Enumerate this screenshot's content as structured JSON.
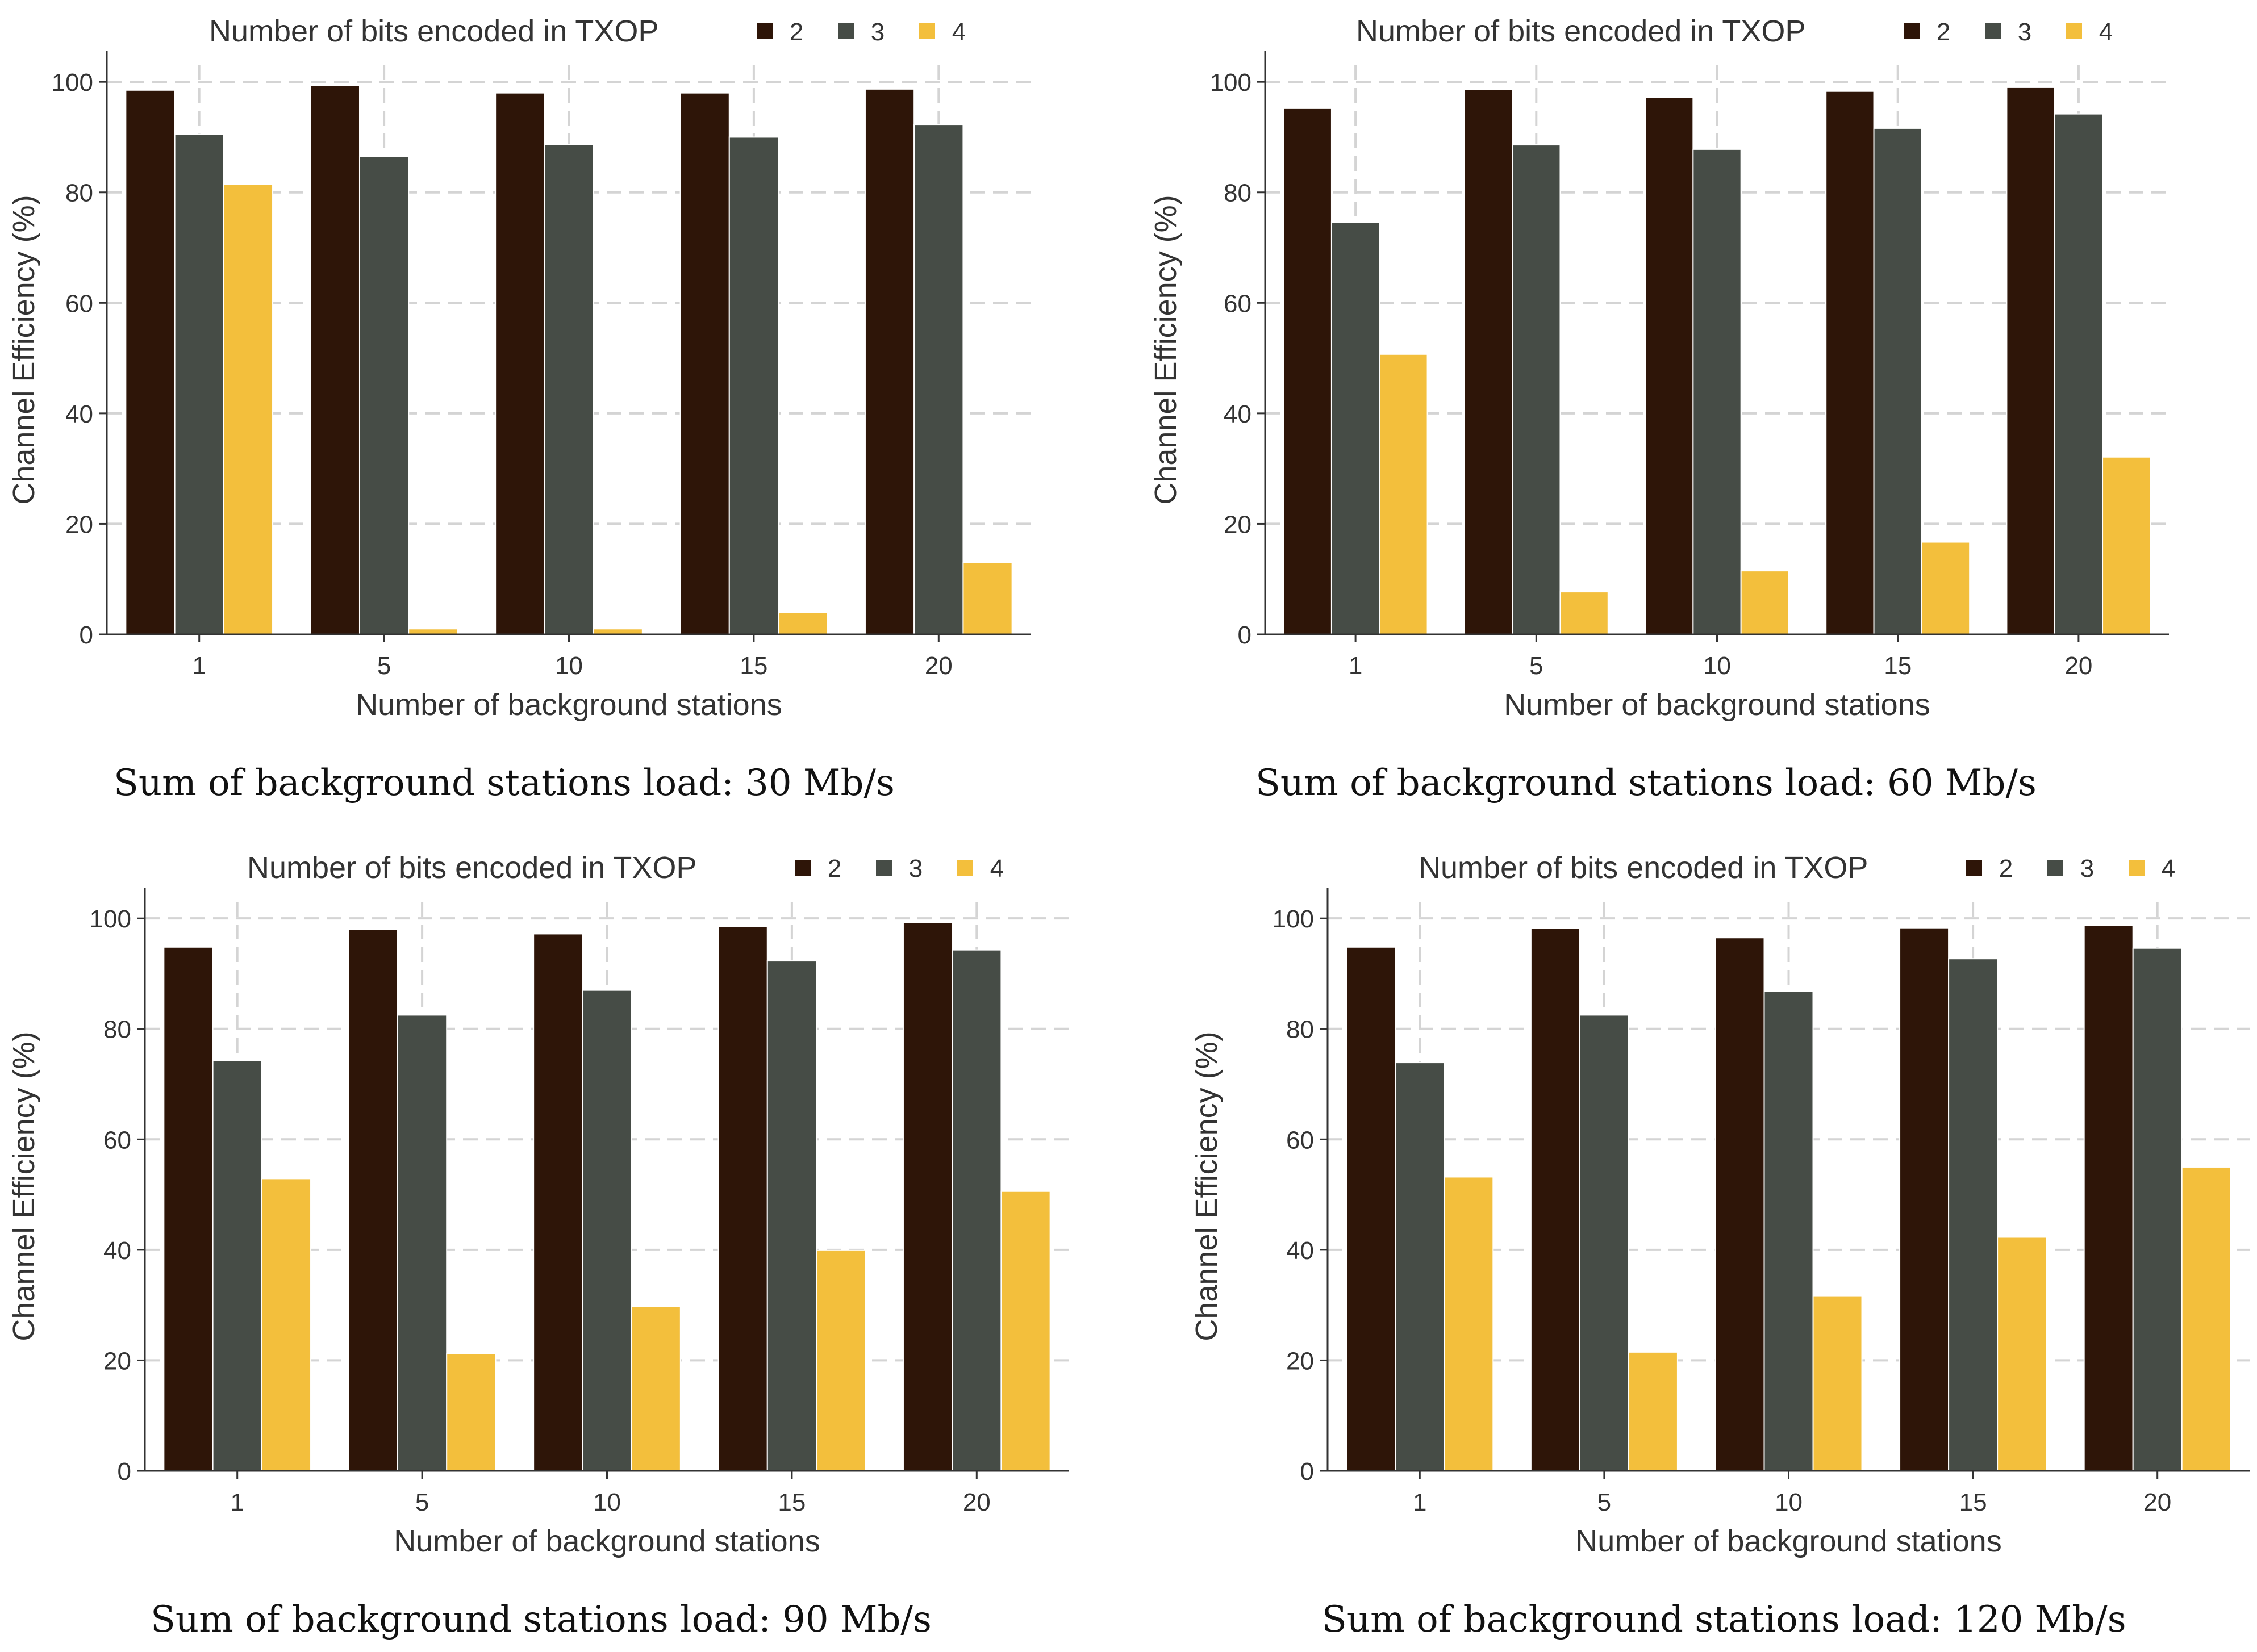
{
  "colors": {
    "s2": "#2e1508",
    "s3": "#464c46",
    "s4": "#f3bf3c",
    "grid": "#d4d4d4",
    "axis": "#333333",
    "text": "#333333"
  },
  "chart_data": [
    {
      "type": "bar",
      "legend_title": "Number of bits encoded in TXOP",
      "categories": [
        "1",
        "5",
        "10",
        "15",
        "20"
      ],
      "series": [
        {
          "name": "2",
          "values": [
            98.5,
            99.3,
            98.0,
            98.0,
            98.7
          ]
        },
        {
          "name": "3",
          "values": [
            90.5,
            86.5,
            88.7,
            90.0,
            92.3
          ]
        },
        {
          "name": "4",
          "values": [
            81.5,
            1.0,
            1.0,
            4.0,
            13.0
          ]
        }
      ],
      "yticks": [
        "0",
        "20",
        "40",
        "60",
        "80",
        "100"
      ],
      "xlabel": "Number of background stations",
      "ylabel": "Channel Efficiency (%)",
      "ylim": [
        0,
        103
      ],
      "grid": true,
      "legend_position": "top",
      "caption": "Sum of background stations load: 30 Mb/s"
    },
    {
      "type": "bar",
      "legend_title": "Number of bits encoded in TXOP",
      "categories": [
        "1",
        "5",
        "10",
        "15",
        "20"
      ],
      "series": [
        {
          "name": "2",
          "values": [
            95.2,
            98.6,
            97.2,
            98.3,
            99.0
          ]
        },
        {
          "name": "3",
          "values": [
            74.6,
            88.6,
            87.8,
            91.6,
            94.2
          ]
        },
        {
          "name": "4",
          "values": [
            50.7,
            7.7,
            11.5,
            16.7,
            32.1
          ]
        }
      ],
      "yticks": [
        "0",
        "20",
        "40",
        "60",
        "80",
        "100"
      ],
      "xlabel": "Number of background stations",
      "ylabel": "Channel Efficiency (%)",
      "ylim": [
        0,
        103
      ],
      "grid": true,
      "legend_position": "top",
      "caption": "Sum of background stations load: 60 Mb/s"
    },
    {
      "type": "bar",
      "legend_title": "Number of bits encoded in TXOP",
      "categories": [
        "1",
        "5",
        "10",
        "15",
        "20"
      ],
      "series": [
        {
          "name": "2",
          "values": [
            94.8,
            98.0,
            97.2,
            98.5,
            99.2
          ]
        },
        {
          "name": "3",
          "values": [
            74.3,
            82.5,
            87.0,
            92.3,
            94.3
          ]
        },
        {
          "name": "4",
          "values": [
            52.9,
            21.2,
            29.8,
            39.9,
            50.6
          ]
        }
      ],
      "yticks": [
        "0",
        "20",
        "40",
        "60",
        "80",
        "100"
      ],
      "xlabel": "Number of background stations",
      "ylabel": "Channel Efficiency (%)",
      "ylim": [
        0,
        103
      ],
      "grid": true,
      "legend_position": "top",
      "caption": "Sum of background stations load: 90 Mb/s"
    },
    {
      "type": "bar",
      "legend_title": "Number of bits encoded in TXOP",
      "categories": [
        "1",
        "5",
        "10",
        "15",
        "20"
      ],
      "series": [
        {
          "name": "2",
          "values": [
            94.8,
            98.2,
            96.5,
            98.3,
            98.7
          ]
        },
        {
          "name": "3",
          "values": [
            73.9,
            82.5,
            86.8,
            92.7,
            94.6
          ]
        },
        {
          "name": "4",
          "values": [
            53.2,
            21.5,
            31.6,
            42.3,
            55.0
          ]
        }
      ],
      "yticks": [
        "0",
        "20",
        "40",
        "60",
        "80",
        "100"
      ],
      "xlabel": "Number of background stations",
      "ylabel": "Channel Efficiency (%)",
      "ylim": [
        0,
        103
      ],
      "grid": true,
      "legend_position": "top",
      "caption": "Sum of background stations load: 120 Mb/s"
    }
  ]
}
